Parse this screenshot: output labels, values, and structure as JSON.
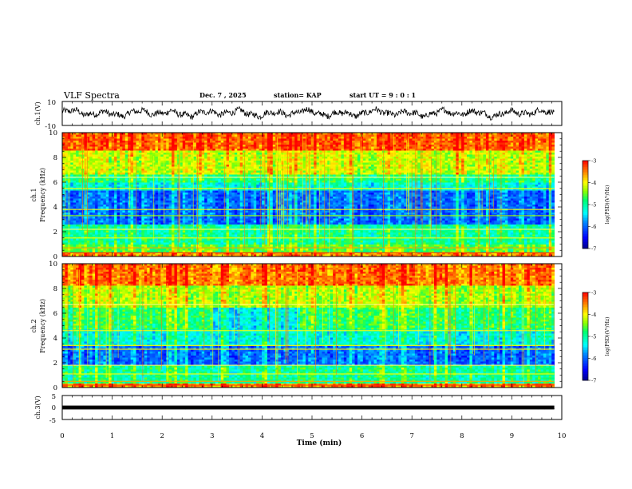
{
  "header": {
    "title": "VLF Spectra",
    "date": "Dec. 7 , 2025",
    "station": "station= KAP",
    "start_ut": "start  UT =   9 : 0  : 1"
  },
  "chart_data": [
    {
      "type": "line",
      "name": "ch1-waveform",
      "ylabel": "ch.1(V)",
      "ylim": [
        -10,
        10
      ],
      "yticks": [
        "10",
        "-10"
      ],
      "xlim": [
        0,
        10
      ],
      "data_end_min": 9.85,
      "description_values": {
        "center_V": 0.3,
        "amplitude_V": 3.5
      }
    },
    {
      "type": "heatmap",
      "name": "ch1-spectrogram",
      "ylabel": "ch.1\nFrequency (kHz)",
      "ylim": [
        0,
        10
      ],
      "yticks": [
        "0",
        "2",
        "4",
        "6",
        "8",
        "10"
      ],
      "xlim": [
        0,
        10
      ],
      "colorbar": {
        "label": "log(PSD)(V²/Hz)",
        "range": [
          -7,
          -3
        ],
        "ticks": [
          "-3",
          "-4",
          "-5",
          "-6",
          "-7"
        ]
      }
    },
    {
      "type": "heatmap",
      "name": "ch2-spectrogram",
      "ylabel": "ch.2\nFrequency (kHz)",
      "ylim": [
        0,
        10
      ],
      "yticks": [
        "0",
        "2",
        "4",
        "6",
        "8",
        "10"
      ],
      "xlim": [
        0,
        10
      ],
      "colorbar": {
        "label": "log(PSD)(V²/Hz)",
        "range": [
          -7,
          -3
        ],
        "ticks": [
          "-3",
          "-4",
          "-5",
          "-6",
          "-7"
        ]
      }
    },
    {
      "type": "line",
      "name": "ch3-waveform",
      "ylabel": "ch.3(V)",
      "ylim": [
        -5,
        5
      ],
      "yticks": [
        "5",
        "0",
        "-5"
      ],
      "xlim": [
        0,
        10
      ],
      "data_end_min": 9.85,
      "description_values": {
        "center_V": 0.0,
        "amplitude_V": 0.8
      }
    }
  ],
  "xaxis": {
    "label": "Time (min)",
    "ticks": [
      "0",
      "1",
      "2",
      "3",
      "4",
      "5",
      "6",
      "7",
      "8",
      "9",
      "10"
    ]
  },
  "labels": {
    "ch1_label_line1": "ch.1",
    "ch1_label_line2": "Frequency (kHz)",
    "ch2_label_line1": "ch.2",
    "ch2_label_line2": "Frequency (kHz)",
    "ch1_volt": "ch.1(V)",
    "ch3_volt": "ch.3(V)",
    "colorbar1_label": "log(PSD)(V²/Hz)",
    "colorbar2_label": "log(PSD)(V²/Hz)"
  },
  "colors": {
    "psd_scale": [
      "#000080",
      "#0000ff",
      "#0080ff",
      "#00ffff",
      "#00ff80",
      "#80ff00",
      "#ffff00",
      "#ff8000",
      "#ff0000",
      "#ffffff"
    ]
  }
}
